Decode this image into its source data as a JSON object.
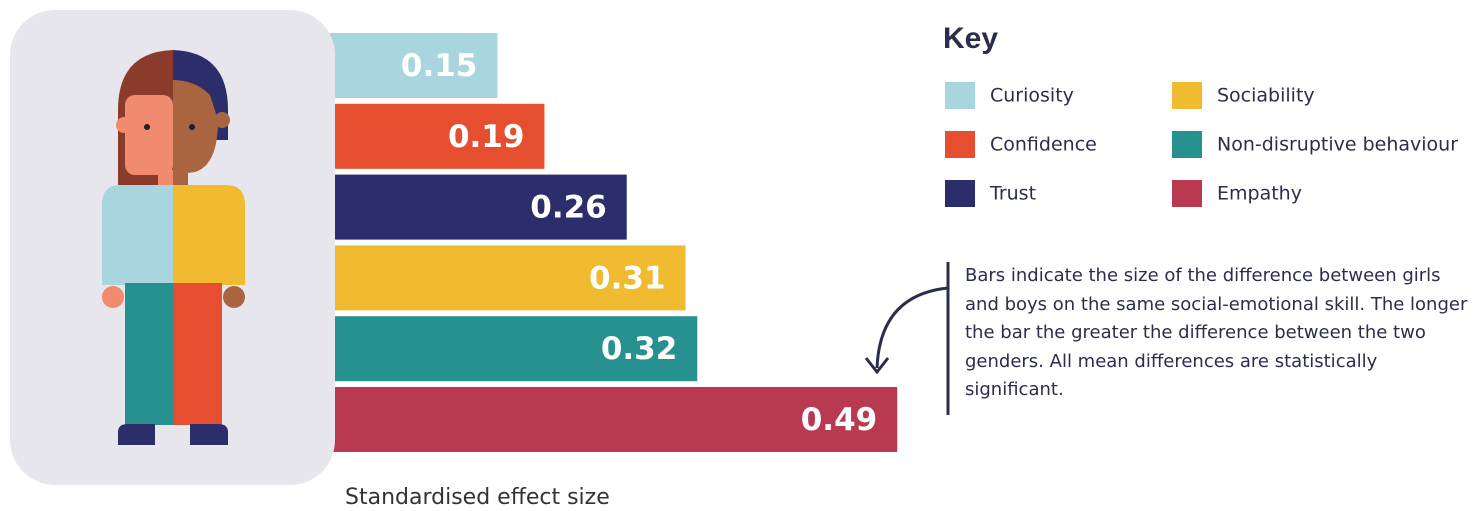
{
  "chart_data": {
    "type": "bar",
    "orientation": "horizontal",
    "categories": [
      "Curiosity",
      "Confidence",
      "Trust",
      "Sociability",
      "Non-disruptive behaviour",
      "Empathy"
    ],
    "values": [
      0.15,
      0.19,
      0.26,
      0.31,
      0.32,
      0.49
    ],
    "colors": [
      "#a9d5df",
      "#e64e30",
      "#2b2e6b",
      "#f0bb30",
      "#27918f",
      "#b93950"
    ],
    "xlabel": "Standardised effect size",
    "legend_title": "Key",
    "annotation": "Bars indicate the size of the difference between girls and boys on the same social-emotional skill. The longer the bar the greater the difference between the two genders. All mean differences are statistically significant."
  }
}
